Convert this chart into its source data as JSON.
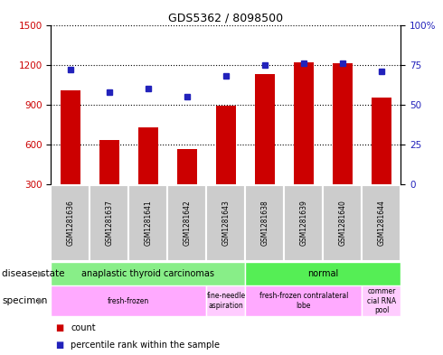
{
  "title": "GDS5362 / 8098500",
  "samples": [
    "GSM1281636",
    "GSM1281637",
    "GSM1281641",
    "GSM1281642",
    "GSM1281643",
    "GSM1281638",
    "GSM1281639",
    "GSM1281640",
    "GSM1281644"
  ],
  "counts": [
    1010,
    635,
    730,
    565,
    890,
    1130,
    1215,
    1210,
    955
  ],
  "percentiles": [
    72,
    58,
    60,
    55,
    68,
    75,
    76,
    76,
    71
  ],
  "ylim_left": [
    300,
    1500
  ],
  "ylim_right": [
    0,
    100
  ],
  "yticks_left": [
    300,
    600,
    900,
    1200,
    1500
  ],
  "yticks_right": [
    0,
    25,
    50,
    75,
    100
  ],
  "bar_color": "#cc0000",
  "dot_color": "#2222bb",
  "bar_width": 0.5,
  "disease_state_groups": [
    {
      "label": "anaplastic thyroid carcinomas",
      "start": 0,
      "end": 5,
      "color": "#88ee88"
    },
    {
      "label": "normal",
      "start": 5,
      "end": 9,
      "color": "#55ee55"
    }
  ],
  "specimen_groups": [
    {
      "label": "fresh-frozen",
      "start": 0,
      "end": 4,
      "color": "#ffaaff"
    },
    {
      "label": "fine-needle\naspiration",
      "start": 4,
      "end": 5,
      "color": "#ffccff"
    },
    {
      "label": "fresh-frozen contralateral\nlobe",
      "start": 5,
      "end": 8,
      "color": "#ffaaff"
    },
    {
      "label": "commer\ncial RNA\npool",
      "start": 8,
      "end": 9,
      "color": "#ffccff"
    }
  ],
  "legend_count_label": "count",
  "legend_percentile_label": "percentile rank within the sample",
  "disease_state_label": "disease state",
  "specimen_label": "specimen",
  "background_color": "#ffffff",
  "plot_bg_color": "#ffffff",
  "sample_box_color": "#cccccc"
}
